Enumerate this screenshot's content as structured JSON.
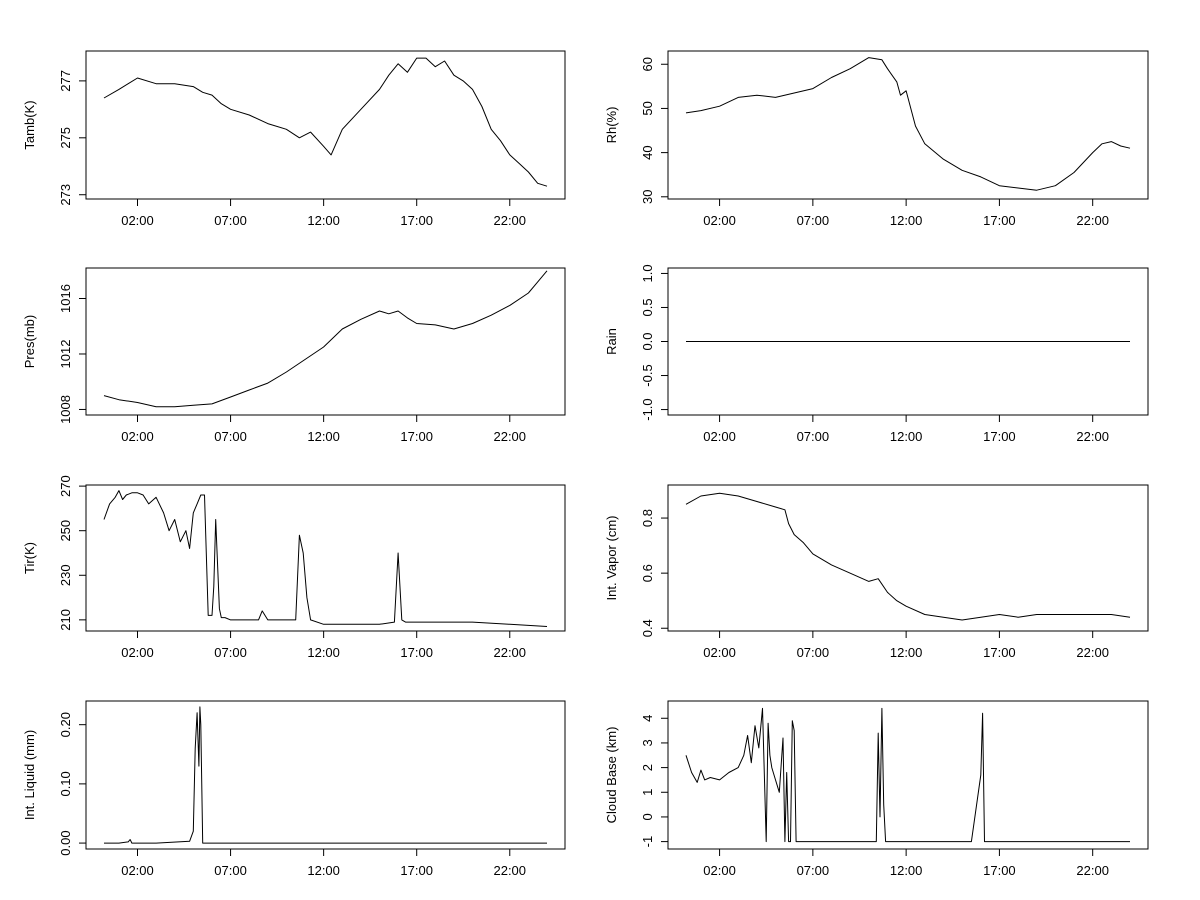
{
  "chart_data": [
    {
      "type": "line",
      "ylabel": "Tamb(K)",
      "x_ticks": [
        "02:00",
        "07:00",
        "12:00",
        "17:00",
        "22:00"
      ],
      "y_ticks": [
        "273",
        "275",
        "277"
      ],
      "ylim": [
        272.85,
        278.05
      ],
      "series": [
        {
          "name": "Tamb(K)",
          "x": [
            0.2,
            1.0,
            1.5,
            2.0,
            3.0,
            4.0,
            5.0,
            5.5,
            6.0,
            6.5,
            7.0,
            8.0,
            9.0,
            10.0,
            10.7,
            11.3,
            12.0,
            12.4,
            13.0,
            14.0,
            15.0,
            15.5,
            16.0,
            16.5,
            17.0,
            17.5,
            18.0,
            18.5,
            19.0,
            19.5,
            20.0,
            20.5,
            21.0,
            21.5,
            22.0,
            22.5,
            23.0,
            23.5,
            24.0
          ],
          "y": [
            276.4,
            276.7,
            276.9,
            277.1,
            276.9,
            276.9,
            276.8,
            276.6,
            276.5,
            276.2,
            276.0,
            275.8,
            275.5,
            275.3,
            275.0,
            275.2,
            274.7,
            274.4,
            275.3,
            276.0,
            276.7,
            277.2,
            277.6,
            277.3,
            277.8,
            277.8,
            277.5,
            277.7,
            277.2,
            277.0,
            276.7,
            276.1,
            275.3,
            274.9,
            274.4,
            274.1,
            273.8,
            273.4,
            273.3
          ]
        }
      ]
    },
    {
      "type": "line",
      "ylabel": "Rh(%)",
      "x_ticks": [
        "02:00",
        "07:00",
        "12:00",
        "17:00",
        "22:00"
      ],
      "y_ticks": [
        "30",
        "40",
        "50",
        "60"
      ],
      "ylim": [
        29.5,
        63.0
      ],
      "series": [
        {
          "name": "Rh(%)",
          "x": [
            0.2,
            1.0,
            2.0,
            3.0,
            4.0,
            5.0,
            6.0,
            7.0,
            8.0,
            9.0,
            10.0,
            10.7,
            11.0,
            11.5,
            11.7,
            12.0,
            12.5,
            13.0,
            14.0,
            15.0,
            16.0,
            17.0,
            18.0,
            19.0,
            20.0,
            21.0,
            22.0,
            22.5,
            23.0,
            23.5,
            24.0
          ],
          "y": [
            49.0,
            49.5,
            50.5,
            52.5,
            53.0,
            52.5,
            53.5,
            54.5,
            57.0,
            59.0,
            61.5,
            61.0,
            59.0,
            56.0,
            53.0,
            54.0,
            46.0,
            42.0,
            38.5,
            36.0,
            34.5,
            32.5,
            32.0,
            31.5,
            32.5,
            35.5,
            40.0,
            42.0,
            42.5,
            41.5,
            41.0
          ]
        }
      ]
    },
    {
      "type": "line",
      "ylabel": "Pres(mb)",
      "x_ticks": [
        "02:00",
        "07:00",
        "12:00",
        "17:00",
        "22:00"
      ],
      "y_ticks": [
        "1008",
        "1012",
        "1016"
      ],
      "ylim": [
        1007.6,
        1018.2
      ],
      "series": [
        {
          "name": "Pres(mb)",
          "x": [
            0.2,
            1.0,
            2.0,
            3.0,
            4.0,
            5.0,
            6.0,
            7.0,
            8.0,
            9.0,
            10.0,
            11.0,
            12.0,
            13.0,
            14.0,
            15.0,
            15.5,
            16.0,
            16.5,
            17.0,
            18.0,
            19.0,
            20.0,
            21.0,
            22.0,
            23.0,
            23.5,
            24.0
          ],
          "y": [
            1009.0,
            1008.7,
            1008.5,
            1008.2,
            1008.2,
            1008.3,
            1008.4,
            1008.9,
            1009.4,
            1009.9,
            1010.7,
            1011.6,
            1012.5,
            1013.8,
            1014.5,
            1015.1,
            1014.9,
            1015.1,
            1014.6,
            1014.2,
            1014.1,
            1013.8,
            1014.2,
            1014.8,
            1015.5,
            1016.4,
            1017.2,
            1018.0
          ]
        }
      ]
    },
    {
      "type": "line",
      "ylabel": "Rain",
      "x_ticks": [
        "02:00",
        "07:00",
        "12:00",
        "17:00",
        "22:00"
      ],
      "y_ticks": [
        "-1.0",
        "-0.5",
        "0.0",
        "0.5",
        "1.0"
      ],
      "ylim": [
        -1.08,
        1.08
      ],
      "series": [
        {
          "name": "Rain",
          "x": [
            0.2,
            24.0
          ],
          "y": [
            0.0,
            0.0
          ]
        }
      ]
    },
    {
      "type": "line",
      "ylabel": "Tir(K)",
      "x_ticks": [
        "02:00",
        "07:00",
        "12:00",
        "17:00",
        "22:00"
      ],
      "y_ticks": [
        "210",
        "230",
        "250",
        "270"
      ],
      "ylim": [
        205.0,
        270.5
      ],
      "series": [
        {
          "name": "Tir(K)",
          "x": [
            0.2,
            0.5,
            0.8,
            1.0,
            1.2,
            1.4,
            1.7,
            2.0,
            2.3,
            2.6,
            3.0,
            3.4,
            3.7,
            4.0,
            4.3,
            4.6,
            4.8,
            5.0,
            5.2,
            5.4,
            5.6,
            5.8,
            6.0,
            6.1,
            6.2,
            6.4,
            6.5,
            6.7,
            7.0,
            8.0,
            8.5,
            8.7,
            9.0,
            10.0,
            10.5,
            10.7,
            10.9,
            11.1,
            11.3,
            12.0,
            13.0,
            14.0,
            15.0,
            15.8,
            16.0,
            16.2,
            16.4,
            17.0,
            18.0,
            20.0,
            22.0,
            24.0
          ],
          "y": [
            255,
            262,
            265,
            268,
            264,
            266,
            267,
            267,
            266,
            262,
            265,
            258,
            250,
            255,
            245,
            250,
            242,
            258,
            262,
            266,
            266,
            212,
            212,
            225,
            255,
            215,
            211,
            211,
            210,
            210,
            210,
            214,
            210,
            210,
            210,
            248,
            240,
            220,
            210,
            208,
            208,
            208,
            208,
            209,
            240,
            210,
            209,
            209,
            209,
            209,
            208,
            207
          ]
        }
      ]
    },
    {
      "type": "line",
      "ylabel": "Int. Vapor (cm)",
      "x_ticks": [
        "02:00",
        "07:00",
        "12:00",
        "17:00",
        "22:00"
      ],
      "y_ticks": [
        "0.4",
        "0.6",
        "0.8"
      ],
      "ylim": [
        0.39,
        0.92
      ],
      "series": [
        {
          "name": "Int. Vapor (cm)",
          "x": [
            0.2,
            1.0,
            2.0,
            3.0,
            4.0,
            5.0,
            5.5,
            5.7,
            6.0,
            6.5,
            7.0,
            8.0,
            9.0,
            10.0,
            10.5,
            11.0,
            11.5,
            12.0,
            13.0,
            14.0,
            15.0,
            16.0,
            17.0,
            18.0,
            19.0,
            20.0,
            21.0,
            22.0,
            23.0,
            24.0
          ],
          "y": [
            0.85,
            0.88,
            0.89,
            0.88,
            0.86,
            0.84,
            0.83,
            0.78,
            0.74,
            0.71,
            0.67,
            0.63,
            0.6,
            0.57,
            0.58,
            0.53,
            0.5,
            0.48,
            0.45,
            0.44,
            0.43,
            0.44,
            0.45,
            0.44,
            0.45,
            0.45,
            0.45,
            0.45,
            0.45,
            0.44
          ]
        }
      ]
    },
    {
      "type": "line",
      "ylabel": "Int. Liquid (mm)",
      "x_ticks": [
        "02:00",
        "07:00",
        "12:00",
        "17:00",
        "22:00"
      ],
      "y_ticks": [
        "0.00",
        "0.10",
        "0.20"
      ],
      "ylim": [
        -0.01,
        0.24
      ],
      "series": [
        {
          "name": "Int. Liquid (mm)",
          "x": [
            0.2,
            1.0,
            1.5,
            1.6,
            1.7,
            3.0,
            4.8,
            5.0,
            5.1,
            5.2,
            5.3,
            5.35,
            5.4,
            5.5,
            5.6,
            6.0,
            24.0
          ],
          "y": [
            0.0,
            0.0,
            0.002,
            0.006,
            0.0,
            0.0,
            0.003,
            0.02,
            0.16,
            0.22,
            0.13,
            0.23,
            0.2,
            0.0,
            0.0,
            0.0,
            0.0
          ]
        }
      ]
    },
    {
      "type": "line",
      "ylabel": "Cloud Base (km)",
      "x_ticks": [
        "02:00",
        "07:00",
        "12:00",
        "17:00",
        "22:00"
      ],
      "y_ticks": [
        "-1",
        "0",
        "1",
        "2",
        "3",
        "4"
      ],
      "ylim": [
        -1.3,
        4.7
      ],
      "series": [
        {
          "name": "Cloud Base (km)",
          "x": [
            0.2,
            0.5,
            0.8,
            1.0,
            1.2,
            1.5,
            2.0,
            2.5,
            3.0,
            3.3,
            3.5,
            3.7,
            3.9,
            4.1,
            4.3,
            4.5,
            4.6,
            4.7,
            4.8,
            5.0,
            5.2,
            5.4,
            5.5,
            5.6,
            5.7,
            5.8,
            5.9,
            6.0,
            6.1,
            6.2,
            6.3,
            6.4,
            6.5,
            7.0,
            8.0,
            9.0,
            10.0,
            10.4,
            10.5,
            10.6,
            10.7,
            10.8,
            10.9,
            11.0,
            12.0,
            14.0,
            15.5,
            16.0,
            16.1,
            16.2,
            16.3,
            17.0,
            20.0,
            24.0
          ],
          "y": [
            2.5,
            1.8,
            1.4,
            1.9,
            1.5,
            1.6,
            1.5,
            1.8,
            2.0,
            2.5,
            3.3,
            2.2,
            3.7,
            2.8,
            4.4,
            -1.0,
            3.8,
            2.5,
            2.0,
            1.5,
            1.0,
            3.2,
            -1.0,
            1.8,
            -1.0,
            -1.0,
            3.9,
            3.5,
            -1.0,
            -1.0,
            -1.0,
            -1.0,
            -1.0,
            -1.0,
            -1.0,
            -1.0,
            -1.0,
            -1.0,
            3.4,
            0.0,
            4.4,
            0.5,
            -1.0,
            -1.0,
            -1.0,
            -1.0,
            -1.0,
            1.7,
            4.2,
            -1.0,
            -1.0,
            -1.0,
            -1.0,
            -1.0
          ]
        }
      ]
    }
  ]
}
